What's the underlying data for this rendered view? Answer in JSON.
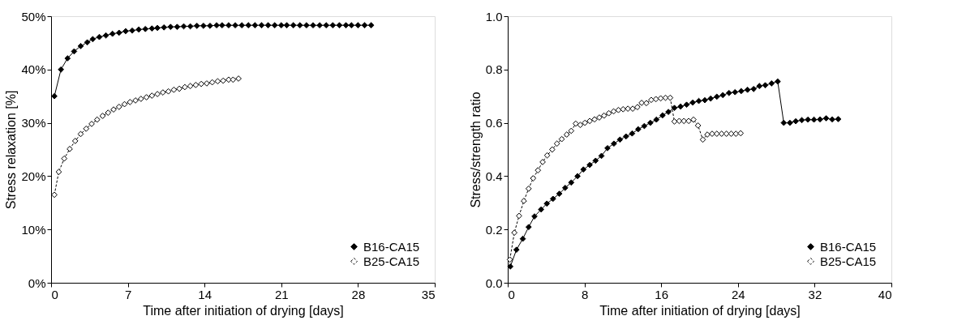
{
  "chart_data": [
    {
      "type": "line",
      "xlabel": "Time after initiation of drying [days]",
      "ylabel": "Stress relaxation [%]",
      "xlim": [
        0,
        35
      ],
      "xticks": [
        0,
        7,
        14,
        21,
        28,
        35
      ],
      "ylim": [
        0,
        50
      ],
      "yticks": [
        {
          "value": 0,
          "label": "0%"
        },
        {
          "value": 10,
          "label": "10%"
        },
        {
          "value": 20,
          "label": "20%"
        },
        {
          "value": 30,
          "label": "30%"
        },
        {
          "value": 40,
          "label": "40%"
        },
        {
          "value": 50,
          "label": "50%"
        }
      ],
      "grid": false,
      "legend": "bottom right",
      "marker": "diamond",
      "series": [
        {
          "name": "B16-CA15",
          "color": "#000000",
          "line_style": "solid",
          "x": [
            0.3,
            0.9,
            1.5,
            2.1,
            2.7,
            3.3,
            3.8,
            4.4,
            5.0,
            5.6,
            6.2,
            6.8,
            7.4,
            8.0,
            8.6,
            9.2,
            9.7,
            10.3,
            10.9,
            11.5,
            12.1,
            12.7,
            13.3,
            13.9,
            14.5,
            15.1,
            15.6,
            16.2,
            16.8,
            17.4,
            18.0,
            18.6,
            19.2,
            19.8,
            20.4,
            21.0,
            21.5,
            22.1,
            22.7,
            23.3,
            23.9,
            24.5,
            25.1,
            25.7,
            26.3,
            26.9,
            27.4,
            28.0,
            28.6,
            29.2
          ],
          "values": [
            35,
            40,
            42.1,
            43.4,
            44.4,
            45.1,
            45.7,
            46.1,
            46.4,
            46.7,
            46.9,
            47.2,
            47.3,
            47.5,
            47.6,
            47.7,
            47.8,
            47.9,
            48.0,
            48.0,
            48.1,
            48.1,
            48.2,
            48.2,
            48.2,
            48.3,
            48.3,
            48.3,
            48.3,
            48.3,
            48.3,
            48.3,
            48.3,
            48.3,
            48.3,
            48.3,
            48.3,
            48.3,
            48.3,
            48.3,
            48.3,
            48.3,
            48.3,
            48.3,
            48.3,
            48.3,
            48.3,
            48.3,
            48.3,
            48.3
          ]
        },
        {
          "name": "B25-CA15",
          "color": "#000000",
          "line_style": "dashed",
          "x": [
            0.3,
            0.7,
            1.2,
            1.7,
            2.2,
            2.7,
            3.2,
            3.7,
            4.2,
            4.7,
            5.2,
            5.7,
            6.2,
            6.7,
            7.2,
            7.7,
            8.2,
            8.7,
            9.2,
            9.7,
            10.2,
            10.7,
            11.2,
            11.7,
            12.2,
            12.7,
            13.2,
            13.7,
            14.2,
            14.7,
            15.2,
            15.7,
            16.2,
            16.6,
            17.1
          ],
          "values": [
            16.5,
            20.8,
            23.3,
            25.1,
            26.6,
            27.9,
            28.9,
            29.8,
            30.6,
            31.3,
            31.9,
            32.5,
            33.0,
            33.5,
            33.9,
            34.2,
            34.5,
            34.8,
            35.1,
            35.4,
            35.7,
            35.9,
            36.2,
            36.4,
            36.7,
            36.9,
            37.1,
            37.3,
            37.4,
            37.6,
            37.8,
            37.9,
            38.1,
            38.1,
            38.3
          ]
        }
      ]
    },
    {
      "type": "line",
      "xlabel": "Time after initiation of drying [days]",
      "ylabel": "Stress/strength ratio",
      "xlim": [
        0,
        40
      ],
      "xticks": [
        0,
        8,
        16,
        24,
        32,
        40
      ],
      "ylim": [
        0,
        1
      ],
      "yticks": [
        {
          "value": 0,
          "label": "0.0"
        },
        {
          "value": 0.2,
          "label": "0.2"
        },
        {
          "value": 0.4,
          "label": "0.4"
        },
        {
          "value": 0.6,
          "label": "0.6"
        },
        {
          "value": 0.8,
          "label": "0.8"
        },
        {
          "value": 1,
          "label": "1.0"
        }
      ],
      "grid": false,
      "legend": "bottom right",
      "marker": "diamond",
      "series": [
        {
          "name": "B16-CA15",
          "color": "#000000",
          "line_style": "solid",
          "x": [
            0.27,
            0.91,
            1.57,
            2.18,
            2.79,
            3.48,
            4.08,
            4.72,
            5.38,
            5.99,
            6.62,
            7.28,
            7.89,
            8.55,
            9.16,
            9.77,
            10.4,
            11.07,
            11.7,
            12.33,
            12.97,
            13.6,
            14.24,
            14.87,
            15.5,
            16.14,
            16.75,
            17.38,
            18.02,
            18.65,
            19.29,
            19.92,
            20.55,
            21.16,
            21.8,
            22.43,
            23.07,
            23.7,
            24.34,
            25.0,
            25.64,
            26.24,
            26.85,
            27.51,
            28.15,
            28.78,
            29.42,
            30.03,
            30.66,
            31.3,
            31.93,
            32.56,
            33.2,
            33.83,
            34.46
          ],
          "values": [
            0.061,
            0.124,
            0.165,
            0.209,
            0.249,
            0.275,
            0.297,
            0.315,
            0.334,
            0.356,
            0.376,
            0.4,
            0.425,
            0.442,
            0.458,
            0.476,
            0.505,
            0.522,
            0.537,
            0.549,
            0.56,
            0.576,
            0.588,
            0.6,
            0.612,
            0.628,
            0.641,
            0.656,
            0.661,
            0.668,
            0.676,
            0.682,
            0.685,
            0.691,
            0.698,
            0.704,
            0.712,
            0.715,
            0.719,
            0.724,
            0.727,
            0.738,
            0.741,
            0.748,
            0.755,
            0.6,
            0.6,
            0.606,
            0.61,
            0.612,
            0.612,
            0.613,
            0.617,
            0.613,
            0.614
          ]
        },
        {
          "name": "B25-CA15",
          "color": "#000000",
          "line_style": "dashed",
          "x": [
            0.22,
            0.69,
            1.18,
            1.68,
            2.18,
            2.65,
            3.15,
            3.64,
            4.11,
            4.64,
            5.13,
            5.63,
            6.15,
            6.62,
            7.09,
            7.56,
            8.05,
            8.55,
            9.05,
            9.55,
            10.04,
            10.54,
            11.04,
            11.54,
            12.03,
            12.53,
            13.03,
            13.52,
            13.96,
            14.46,
            14.96,
            15.45,
            15.95,
            16.45,
            16.94,
            17.38,
            17.88,
            18.37,
            18.87,
            19.37,
            19.84,
            20.34,
            20.81,
            21.31,
            21.8,
            22.3,
            22.8,
            23.3,
            23.79,
            24.29
          ],
          "values": [
            0.087,
            0.188,
            0.251,
            0.307,
            0.353,
            0.392,
            0.422,
            0.453,
            0.478,
            0.5,
            0.522,
            0.539,
            0.556,
            0.57,
            0.597,
            0.592,
            0.6,
            0.607,
            0.613,
            0.62,
            0.627,
            0.636,
            0.643,
            0.648,
            0.651,
            0.653,
            0.653,
            0.659,
            0.675,
            0.674,
            0.686,
            0.689,
            0.692,
            0.694,
            0.694,
            0.605,
            0.607,
            0.607,
            0.607,
            0.612,
            0.59,
            0.537,
            0.556,
            0.559,
            0.559,
            0.559,
            0.559,
            0.559,
            0.559,
            0.561
          ]
        }
      ]
    }
  ]
}
